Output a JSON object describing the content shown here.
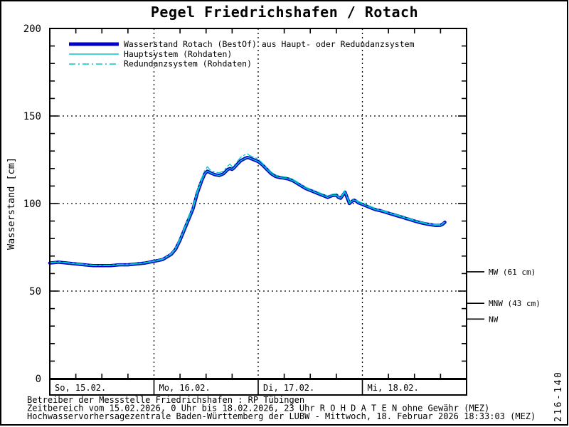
{
  "title": "Pegel Friedrichshafen / Rotach",
  "page_id_vertical": "216-140",
  "legend": {
    "items": [
      {
        "label": "Wasserstand Rotach  (BestOf)  aus Haupt- oder Redundanzsystem",
        "style": "thick-solid",
        "color": "#0000C8"
      },
      {
        "label": "Hauptsystem (Rohdaten)",
        "style": "thin-solid",
        "color": "#00C8C8"
      },
      {
        "label": "Redundanzsystem (Rohdaten)",
        "style": "dash-dot",
        "color": "#00C8C8"
      }
    ]
  },
  "footer": {
    "lines": [
      "Betreiber der Messstelle Friedrichshafen : RP Tübingen",
      "Zeitbereich vom 15.02.2026, 0 Uhr bis 18.02.2026, 23 Uhr   R O H D A T E N ohne Gewähr (MEZ)",
      "Hochwasservorhersagezentrale Baden-Württemberg der LUBW - Mittwoch, 18. Februar 2026 18:33:03 (MEZ)"
    ]
  },
  "chart_data": {
    "type": "line",
    "title": "Pegel Friedrichshafen / Rotach",
    "xlabel": "",
    "ylabel": "Wasserstand [cm]",
    "ylim": [
      0,
      200
    ],
    "yticks": [
      0,
      50,
      100,
      150,
      200
    ],
    "y_minor_step": 10,
    "y_gridlines": [
      50,
      100,
      150
    ],
    "x_range_hours": [
      0,
      96
    ],
    "x_minor_step_hours": 6,
    "x_day_boundaries_hours": [
      24,
      48,
      72
    ],
    "x_day_labels": [
      "So, 15.02.",
      "Mo, 16.02.",
      "Di, 17.02.",
      "Mi, 18.02."
    ],
    "grid": "dotted",
    "legend_position": "top-left-inside",
    "reference_levels": [
      {
        "label": "MW (61 cm)",
        "value_cm": 61
      },
      {
        "label": "MNW (43 cm)",
        "value_cm": 43
      },
      {
        "label": "NW",
        "value_cm": 34
      }
    ],
    "series": [
      {
        "name": "Wasserstand Rotach (BestOf) aus Haupt- oder Redundanzsystem",
        "color": "#0000C8",
        "width": 4.5,
        "dash": "",
        "x_hours": [
          0,
          2,
          4,
          6,
          8,
          10,
          12,
          14,
          16,
          18,
          20,
          22,
          24,
          26,
          27,
          28,
          29,
          30,
          31,
          32,
          33,
          34,
          35,
          35.7,
          36.3,
          37,
          38,
          39,
          40,
          41,
          41.5,
          42,
          42.5,
          43,
          44,
          45,
          45.5,
          46,
          47,
          48,
          49,
          50,
          51,
          52,
          53,
          54,
          55,
          56,
          57,
          58,
          59,
          60,
          61,
          62,
          63,
          64,
          65,
          66,
          66.5,
          67,
          68,
          68.4,
          69,
          69.5,
          70,
          70.5,
          71,
          72,
          73,
          74,
          75,
          76,
          77,
          78,
          79,
          80,
          81,
          82,
          83,
          84,
          85,
          86,
          87,
          88,
          89,
          90,
          90.5,
          91
        ],
        "values_cm": [
          66,
          66.5,
          66,
          65.5,
          65,
          64.5,
          64.5,
          64.5,
          65,
          65,
          65.5,
          66,
          67,
          68,
          69.5,
          71,
          74,
          79,
          85,
          91,
          97,
          106,
          113,
          117,
          118.5,
          117.5,
          116.5,
          116,
          117,
          119.5,
          120,
          119.5,
          120.5,
          122,
          124.5,
          125.8,
          126.3,
          126,
          125,
          124,
          122,
          119.5,
          117,
          115.5,
          114.8,
          114.5,
          114,
          113,
          111.5,
          110,
          108.5,
          107.5,
          106.5,
          105.5,
          104.5,
          103.5,
          104.5,
          104.8,
          103.5,
          103,
          106.5,
          104,
          100,
          101,
          102,
          101.5,
          100.5,
          99.5,
          98.5,
          97.5,
          96.5,
          96,
          95.3,
          94.5,
          93.8,
          93,
          92.3,
          91.5,
          90.8,
          90,
          89.3,
          88.7,
          88.2,
          87.8,
          87.5,
          87.6,
          88.2,
          89.3
        ]
      },
      {
        "name": "Hauptsystem (Rohdaten)",
        "color": "#00C8C8",
        "width": 1.3,
        "dash": "",
        "x_hours": [
          0,
          2,
          4,
          6,
          8,
          10,
          12,
          14,
          16,
          18,
          20,
          22,
          24,
          26,
          27,
          28,
          29,
          30,
          31,
          32,
          33,
          34,
          35,
          35.7,
          36.3,
          37,
          38,
          39,
          40,
          41,
          41.5,
          42,
          42.5,
          43,
          44,
          45,
          45.5,
          46,
          47,
          48,
          49,
          50,
          51,
          52,
          53,
          54,
          55,
          56,
          57,
          58,
          59,
          60,
          61,
          62,
          63,
          64,
          65,
          66,
          66.5,
          67,
          68,
          68.4,
          69,
          69.5,
          70,
          70.5,
          71,
          72,
          73,
          74,
          75,
          76,
          77,
          78,
          79,
          80,
          81,
          82,
          83,
          84,
          85,
          86,
          87,
          88,
          89,
          90,
          90.5,
          91
        ],
        "values_cm": [
          66,
          66.5,
          66,
          65.5,
          65,
          64.5,
          64.5,
          64.5,
          65,
          65,
          65.5,
          66,
          67,
          68,
          69.5,
          71,
          74,
          79,
          85,
          91,
          97,
          106,
          113,
          117,
          118.5,
          117.5,
          116.5,
          116,
          117,
          119.5,
          120,
          119.5,
          120.5,
          122,
          124.5,
          125.8,
          126.3,
          126,
          125,
          124,
          122,
          119.5,
          117,
          115.5,
          114.8,
          114.5,
          114,
          113,
          111.5,
          110,
          108.5,
          107.5,
          106.5,
          105.5,
          104.5,
          103.5,
          104.5,
          104.8,
          103.5,
          103,
          106.5,
          104,
          100,
          101,
          102,
          101.5,
          100.5,
          99.5,
          98.5,
          97.5,
          96.5,
          96,
          95.3,
          94.5,
          93.8,
          93,
          92.3,
          91.5,
          90.8,
          90,
          89.3,
          88.7,
          88.2,
          87.8,
          87.5,
          87.6,
          88.2,
          89.3
        ]
      },
      {
        "name": "Redundanzsystem (Rohdaten)",
        "color": "#00C8C8",
        "width": 1.3,
        "dash": "9 4 2 4",
        "x_hours": [
          0,
          2,
          4,
          6,
          8,
          10,
          12,
          14,
          16,
          18,
          20,
          22,
          24,
          26,
          27,
          28,
          29,
          30,
          31,
          32,
          33,
          34,
          35,
          35.7,
          36.3,
          37,
          38,
          39,
          40,
          41,
          41.5,
          42,
          42.5,
          43,
          44,
          45,
          45.5,
          46,
          47,
          48,
          49,
          50,
          51,
          52,
          53,
          54,
          55,
          56,
          57,
          58,
          59,
          60,
          61,
          62,
          63,
          64,
          65,
          66,
          66.5,
          67,
          68,
          68.4,
          69,
          69.5,
          70,
          70.5,
          71,
          72,
          73,
          74,
          75,
          76,
          77,
          78,
          79,
          80,
          81,
          82,
          83,
          84,
          85,
          86,
          87,
          88,
          89,
          90,
          90.5,
          91
        ],
        "values_cm": [
          66.3,
          66.8,
          66.3,
          65.8,
          65.3,
          64.8,
          64.8,
          64.8,
          65.3,
          65.3,
          65.8,
          66.3,
          67.3,
          68.4,
          70,
          71.5,
          75,
          80,
          86,
          92.5,
          98.5,
          107.5,
          114.5,
          119,
          121,
          119,
          118,
          117.5,
          118.5,
          121.5,
          122.5,
          121,
          122,
          123.5,
          126.5,
          128,
          128.5,
          127.5,
          126.5,
          125.5,
          123,
          120.5,
          118,
          116.3,
          115.6,
          115.3,
          114.8,
          113.8,
          112.3,
          110.8,
          109.3,
          108.3,
          107.3,
          106.3,
          105.3,
          104.3,
          105.3,
          105.6,
          104.3,
          103.8,
          107.3,
          104.8,
          100.8,
          101.8,
          102.8,
          102.3,
          101.3,
          100.3,
          99.2,
          98.2,
          97.2,
          96.5,
          95.8,
          95,
          94.3,
          93.5,
          92.8,
          92,
          91.3,
          90.5,
          89.8,
          89.2,
          88.7,
          88.3,
          88,
          88.1,
          88.7,
          89.8
        ]
      }
    ]
  }
}
